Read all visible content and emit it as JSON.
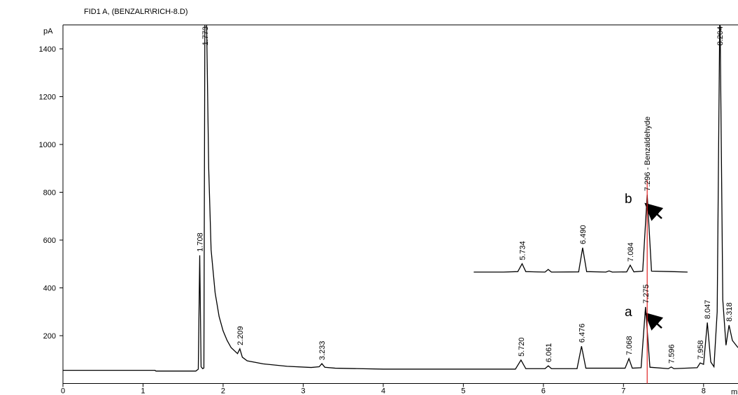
{
  "chart_data": {
    "type": "line",
    "title": "FID1 A,  (BENZALR\\RICH-8.D)",
    "y_label": "pA",
    "x_label": "min",
    "xlim": [
      0,
      8.43
    ],
    "xticks": [
      0,
      1,
      2,
      3,
      4,
      5,
      6,
      7,
      8
    ],
    "ylim": [
      0,
      1500
    ],
    "yticks": [
      200,
      400,
      600,
      800,
      1000,
      1200,
      1400
    ],
    "reference_line": {
      "x": 7.296,
      "color": "#e02020"
    },
    "series": [
      {
        "color": "#000000",
        "x": [
          0,
          1.15,
          1.16,
          1.66,
          1.69,
          1.708,
          1.725,
          1.745,
          1.76,
          1.773,
          1.79,
          1.82,
          1.85,
          1.9,
          1.95,
          2.0,
          2.05,
          2.1,
          2.18,
          2.209,
          2.24,
          2.3,
          2.5,
          2.8,
          3.1,
          3.2,
          3.233,
          3.27,
          3.4,
          4.0,
          5.0,
          5.65,
          5.72,
          5.78,
          6.02,
          6.061,
          6.1,
          6.42,
          6.476,
          6.53,
          7.02,
          7.068,
          7.11,
          7.22,
          7.275,
          7.33,
          7.56,
          7.596,
          7.63,
          7.92,
          7.958,
          8.0,
          8.047,
          8.09,
          8.13,
          8.17,
          8.204,
          8.24,
          8.28,
          8.318,
          8.36,
          8.43
        ],
        "values": [
          55,
          55,
          52,
          52,
          60,
          536,
          70,
          62,
          65,
          1600,
          1600,
          900,
          560,
          380,
          280,
          220,
          180,
          150,
          125,
          145,
          110,
          95,
          82,
          72,
          67,
          70,
          83,
          68,
          64,
          60,
          60,
          60,
          98,
          62,
          62,
          74,
          62,
          62,
          156,
          64,
          64,
          104,
          64,
          66,
          320,
          68,
          62,
          69,
          62,
          66,
          86,
          80,
          255,
          90,
          70,
          300,
          1600,
          350,
          160,
          244,
          180,
          150
        ],
        "peaks": [
          1.708,
          1.773,
          2.209,
          3.233,
          {
            "value": 5.72,
            "label": "5.720"
          },
          6.061,
          6.476,
          7.068,
          7.275,
          7.596,
          7.958,
          8.047,
          8.204,
          8.318
        ]
      },
      {
        "color": "#000000",
        "x": [
          5.13,
          5.5,
          5.68,
          5.734,
          5.78,
          6.02,
          6.06,
          6.1,
          6.44,
          6.49,
          6.54,
          6.78,
          6.82,
          6.86,
          7.04,
          7.084,
          7.13,
          7.24,
          7.296,
          7.35,
          7.6,
          7.8
        ],
        "values": [
          466,
          466,
          468,
          501,
          468,
          466,
          477,
          466,
          467,
          568,
          468,
          466,
          471,
          466,
          467,
          495,
          467,
          470,
          790,
          470,
          468,
          466
        ],
        "peaks": [
          5.734,
          {
            "value": 6.49,
            "label": "6.490"
          },
          7.084,
          {
            "value": 7.296,
            "label": "7.296 - Benzaldehyde"
          }
        ]
      }
    ],
    "annotations": [
      "a",
      "b"
    ]
  }
}
